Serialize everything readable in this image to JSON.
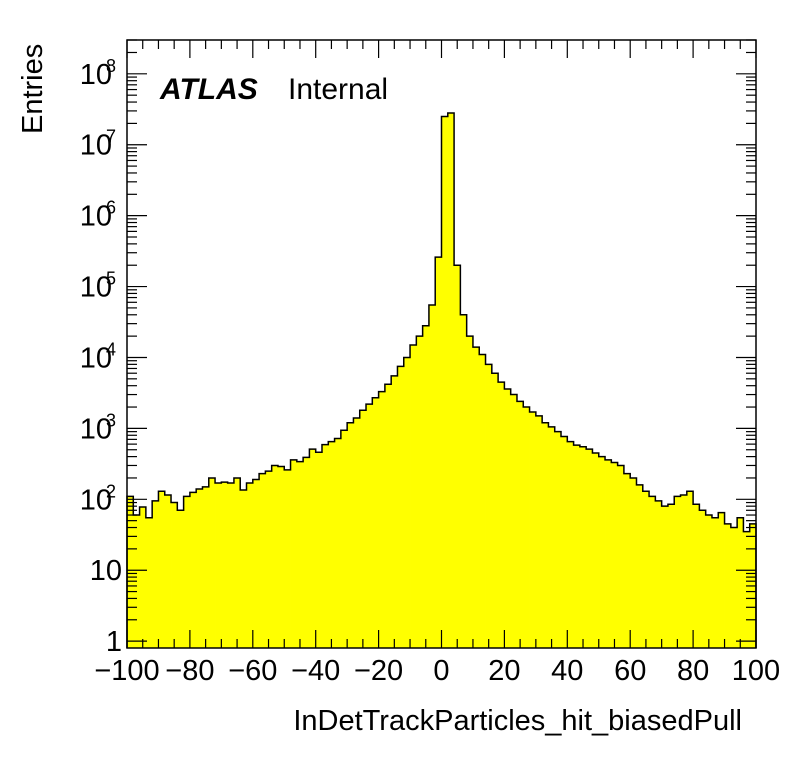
{
  "chart_data": {
    "type": "histogram",
    "xlabel": "InDetTrackParticles_hit_biasedPull",
    "ylabel": "Entries",
    "experiment_label": "ATLAS",
    "status_label": "Internal",
    "xlim": [
      -100,
      100
    ],
    "ylim": [
      0.8,
      300000000
    ],
    "log_y": true,
    "grid": false,
    "legend": "none",
    "bin_width": 2,
    "x_ticks": [
      "−100",
      "−80",
      "−60",
      "−40",
      "−20",
      "0",
      "20",
      "40",
      "60",
      "80",
      "100"
    ],
    "y_ticks": [
      {
        "base": "1",
        "exp": ""
      },
      {
        "base": "10",
        "exp": ""
      },
      {
        "base": "10",
        "exp": "2"
      },
      {
        "base": "10",
        "exp": "3"
      },
      {
        "base": "10",
        "exp": "4"
      },
      {
        "base": "10",
        "exp": "5"
      },
      {
        "base": "10",
        "exp": "6"
      },
      {
        "base": "10",
        "exp": "7"
      },
      {
        "base": "10",
        "exp": "8"
      }
    ],
    "bin_edges_low": -100,
    "values": [
      110,
      60,
      78,
      55,
      95,
      130,
      115,
      90,
      70,
      110,
      125,
      140,
      150,
      200,
      170,
      175,
      170,
      200,
      135,
      170,
      190,
      230,
      250,
      300,
      290,
      260,
      360,
      340,
      390,
      510,
      460,
      590,
      650,
      720,
      940,
      1200,
      1400,
      1800,
      2200,
      2700,
      3300,
      4200,
      5500,
      7500,
      10000,
      15000,
      20000,
      28000,
      55000,
      260000,
      25000000,
      28000000,
      200000,
      40000,
      20000,
      14000,
      11000,
      8000,
      6000,
      4500,
      3600,
      3000,
      2400,
      2000,
      1700,
      1500,
      1200,
      1050,
      900,
      770,
      650,
      580,
      550,
      510,
      450,
      400,
      360,
      330,
      300,
      230,
      200,
      160,
      130,
      110,
      95,
      80,
      85,
      110,
      115,
      130,
      85,
      70,
      60,
      55,
      65,
      45,
      40,
      55,
      35,
      45
    ],
    "fill_color": "#ffff00",
    "line_color": "#000000"
  }
}
